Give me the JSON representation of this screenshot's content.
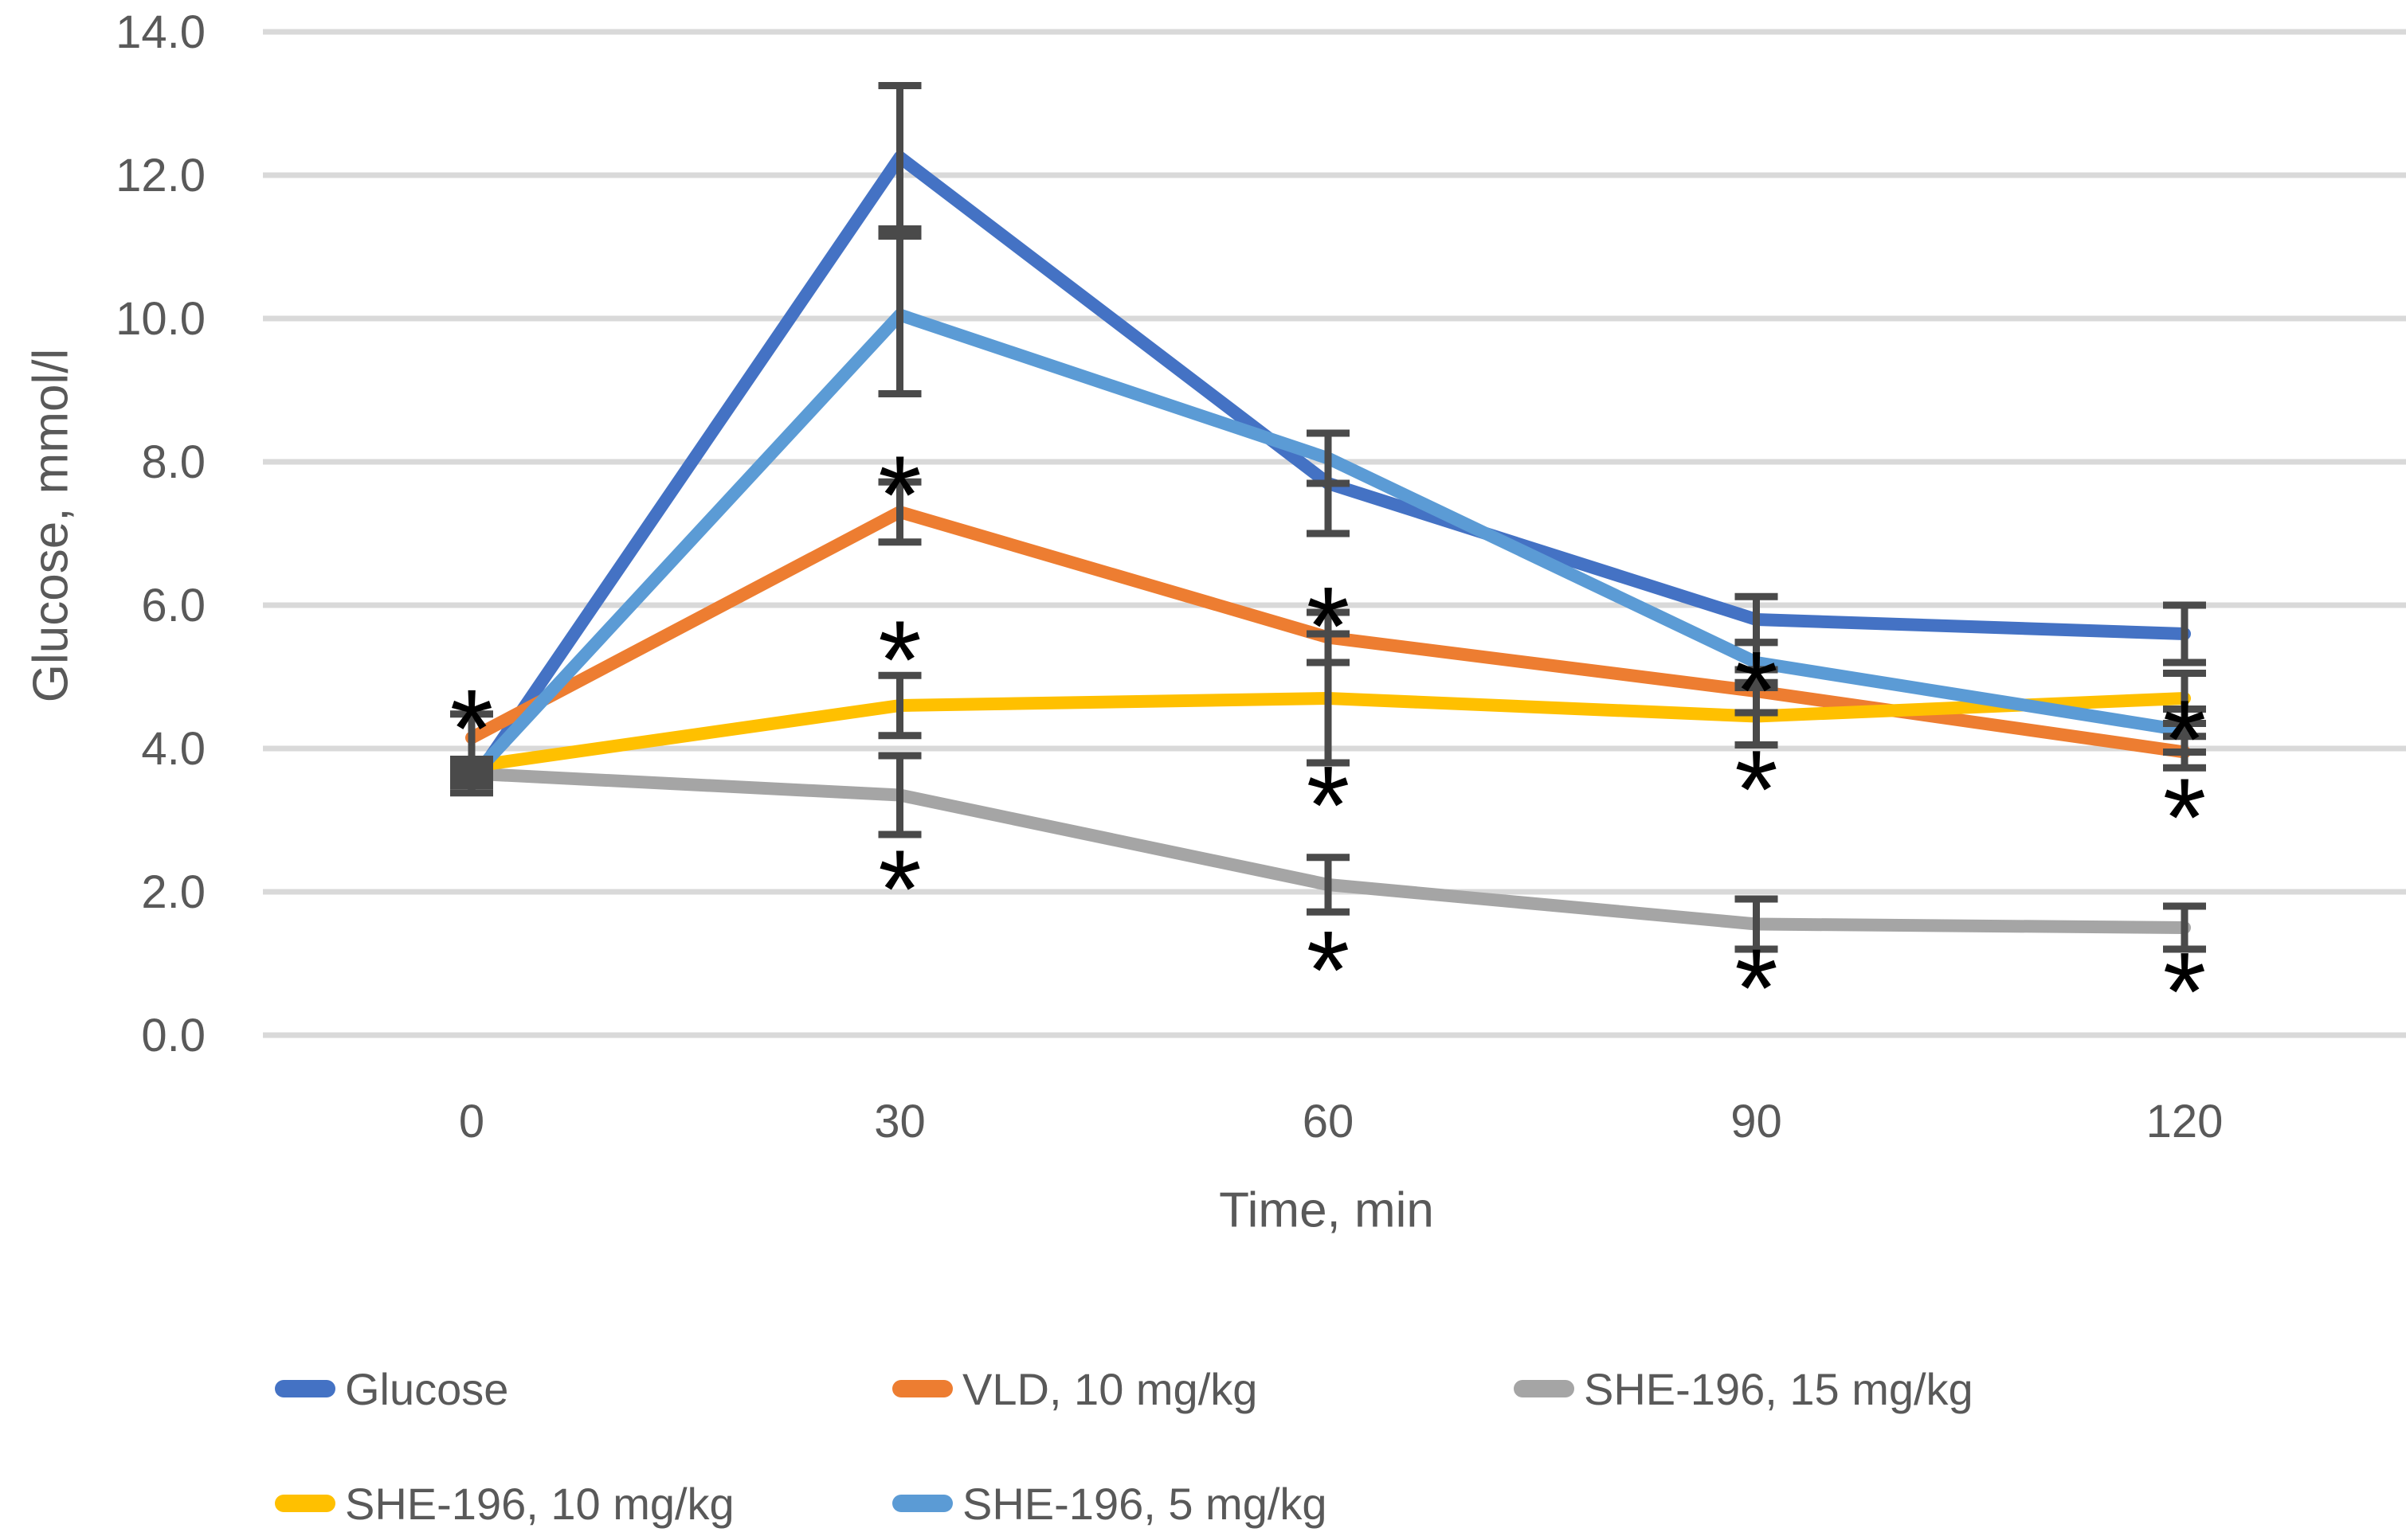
{
  "chart_data": {
    "type": "line",
    "title": "",
    "xlabel": "Time, min",
    "ylabel": "Glucose, mmol/l",
    "x": [
      0,
      30,
      60,
      90,
      120
    ],
    "x_tick_labels": [
      "0",
      "30",
      "60",
      "90",
      "120"
    ],
    "y_tick_labels": [
      "0.0",
      "2.0",
      "4.0",
      "6.0",
      "8.0",
      "10.0",
      "12.0",
      "14.0"
    ],
    "ylim": [
      0,
      14
    ],
    "ytick_step": 2,
    "grid": true,
    "gridline_color": "#D9D9D9",
    "error_bar_color": "#4A4A4A",
    "text_color": "#595959",
    "legend_position": "bottom",
    "series": [
      {
        "name": "Glucose",
        "color": "#4472C4",
        "values": [
          3.5,
          12.25,
          7.7,
          5.8,
          5.6
        ],
        "err": [
          0.12,
          1.0,
          0.7,
          0.32,
          0.4
        ]
      },
      {
        "name": "VLD, 10 mg/kg",
        "color": "#ED7D31",
        "values": [
          4.15,
          7.3,
          5.55,
          4.8,
          3.95
        ],
        "err": [
          0.33,
          0.42,
          0.35,
          0.3,
          0.22
        ]
      },
      {
        "name": "SHE-196, 15 mg/kg",
        "color": "#A5A5A5",
        "values": [
          3.65,
          3.35,
          2.1,
          1.55,
          1.5
        ],
        "err": [
          0.12,
          0.55,
          0.38,
          0.35,
          0.3
        ]
      },
      {
        "name": "SHE-196, 10 mg/kg",
        "color": "#FFC000",
        "values": [
          3.75,
          4.6,
          4.7,
          4.45,
          4.7
        ],
        "err": [
          0.1,
          0.42,
          0.9,
          0.4,
          0.35
        ]
      },
      {
        "name": "SHE-196, 5 mg/kg",
        "color": "#5B9BD5",
        "values": [
          3.6,
          10.05,
          8.05,
          5.2,
          4.25
        ],
        "err": [
          0.12,
          1.1,
          0.35,
          0.28,
          0.3
        ]
      }
    ],
    "annotations": [
      {
        "t": 0,
        "v": 4.52,
        "symbol": "*"
      },
      {
        "t": 30,
        "v": 7.78,
        "symbol": "*"
      },
      {
        "t": 30,
        "v": 5.48,
        "symbol": "*"
      },
      {
        "t": 30,
        "v": 2.28,
        "symbol": "*"
      },
      {
        "t": 60,
        "v": 5.95,
        "symbol": "*"
      },
      {
        "t": 60,
        "v": 3.45,
        "symbol": "*"
      },
      {
        "t": 60,
        "v": 1.15,
        "symbol": "*"
      },
      {
        "t": 90,
        "v": 5.05,
        "symbol": "*"
      },
      {
        "t": 90,
        "v": 3.67,
        "symbol": "*"
      },
      {
        "t": 90,
        "v": 0.9,
        "symbol": "*"
      },
      {
        "t": 120,
        "v": 4.37,
        "symbol": "*"
      },
      {
        "t": 120,
        "v": 3.28,
        "symbol": "*"
      },
      {
        "t": 120,
        "v": 0.85,
        "symbol": "*"
      }
    ]
  }
}
